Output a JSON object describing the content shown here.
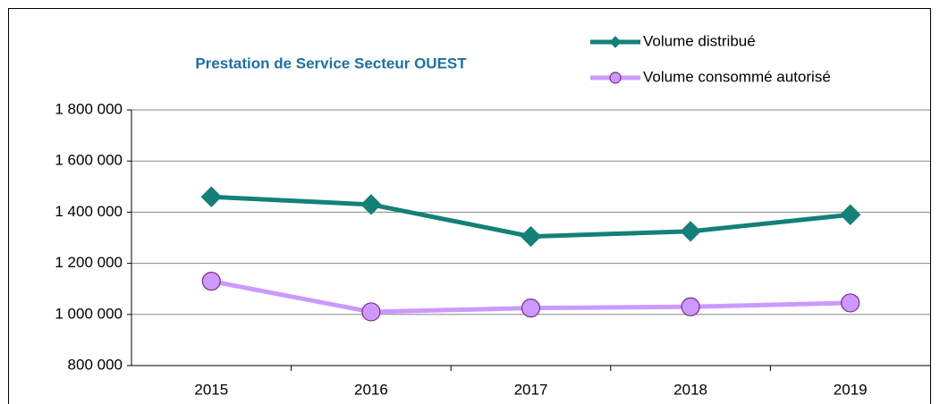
{
  "chart_data": {
    "type": "line",
    "title": "Prestation de Service Secteur OUEST",
    "categories": [
      "2015",
      "2016",
      "2017",
      "2018",
      "2019"
    ],
    "series": [
      {
        "name": "Volume distribué",
        "color": "#148078",
        "marker": "diamond",
        "values": [
          1460000,
          1430000,
          1305000,
          1325000,
          1390000
        ]
      },
      {
        "name": "Volume consommé autorisé",
        "color": "#cc99ff",
        "marker": "circle",
        "values": [
          1130000,
          1010000,
          1025000,
          1030000,
          1045000
        ]
      }
    ],
    "ylim": [
      800000,
      1800000
    ],
    "yticks": [
      {
        "value": 800000,
        "label": "800 000"
      },
      {
        "value": 1000000,
        "label": "1 000 000"
      },
      {
        "value": 1200000,
        "label": "1 200 000"
      },
      {
        "value": 1400000,
        "label": "1 400 000"
      },
      {
        "value": 1600000,
        "label": "1 600 000"
      },
      {
        "value": 1800000,
        "label": "1 800 000"
      }
    ],
    "grid": true,
    "legend": "top-right"
  }
}
